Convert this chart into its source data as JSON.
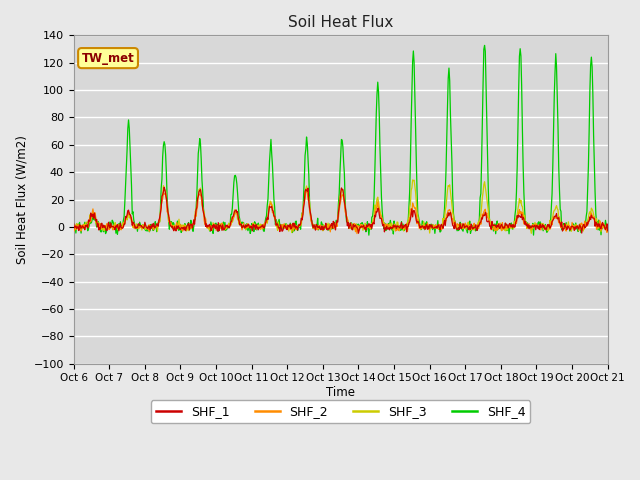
{
  "title": "Soil Heat Flux",
  "ylabel": "Soil Heat Flux (W/m2)",
  "xlabel": "Time",
  "ylim": [
    -100,
    140
  ],
  "xlim": [
    0,
    360
  ],
  "colors": {
    "SHF_1": "#cc0000",
    "SHF_2": "#ff8c00",
    "SHF_3": "#cccc00",
    "SHF_4": "#00cc00"
  },
  "fig_bg_color": "#e8e8e8",
  "ax_bg_color": "#d8d8d8",
  "annotation_text": "TW_met",
  "annotation_box_color": "#ffff99",
  "annotation_box_edge": "#cc8800",
  "tick_labels": [
    "Oct 6",
    "Oct 7",
    "Oct 8",
    "Oct 9",
    "Oct 10",
    "Oct 11",
    "Oct 12",
    "Oct 13",
    "Oct 14",
    "Oct 15",
    "Oct 16",
    "Oct 17",
    "Oct 18",
    "Oct 19",
    "Oct 20",
    "Oct 21"
  ],
  "tick_positions": [
    0,
    24,
    48,
    72,
    96,
    120,
    144,
    168,
    192,
    216,
    240,
    264,
    288,
    312,
    336,
    360
  ]
}
